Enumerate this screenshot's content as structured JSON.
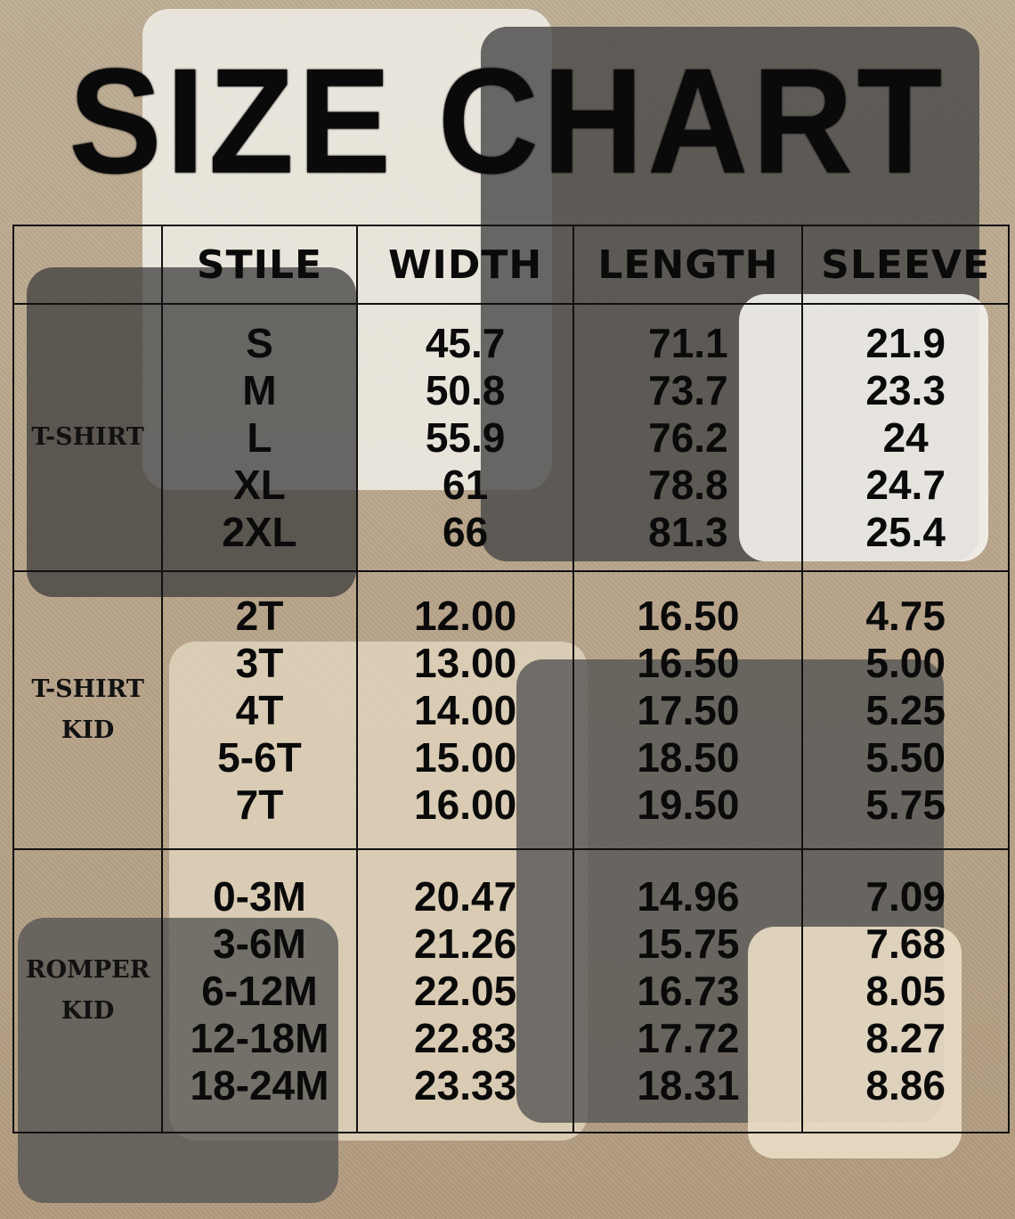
{
  "title": "SIZE CHART",
  "headers": [
    "",
    "STILE",
    "WIDTH",
    "LENGTH",
    "SLEEVE"
  ],
  "groups": [
    {
      "label": [
        "T-SHIRT"
      ],
      "sizes": [
        "S",
        "M",
        "L",
        "XL",
        "2XL"
      ],
      "width": [
        "45.7",
        "50.8",
        "55.9",
        "61",
        "66"
      ],
      "length": [
        "71.1",
        "73.7",
        "76.2",
        "78.8",
        "81.3"
      ],
      "sleeve": [
        "21.9",
        "23.3",
        "24",
        "24.7",
        "25.4"
      ]
    },
    {
      "label": [
        "T-SHIRT",
        "KID"
      ],
      "sizes": [
        "2T",
        "3T",
        "4T",
        "5-6T",
        "7T"
      ],
      "width": [
        "12.00",
        "13.00",
        "14.00",
        "15.00",
        "16.00"
      ],
      "length": [
        "16.50",
        "16.50",
        "17.50",
        "18.50",
        "19.50"
      ],
      "sleeve": [
        "4.75",
        "5.00",
        "5.25",
        "5.50",
        "5.75"
      ]
    },
    {
      "label": [
        "ROMPER",
        "KID"
      ],
      "sizes": [
        "0-3M",
        "3-6M",
        "6-12M",
        "12-18M",
        "18-24M"
      ],
      "width": [
        "20.47",
        "21.26",
        "22.05",
        "22.83",
        "23.33"
      ],
      "length": [
        "14.96",
        "15.75",
        "16.73",
        "17.72",
        "18.31"
      ],
      "sleeve": [
        "7.09",
        "7.68",
        "8.05",
        "8.27",
        "8.86"
      ]
    }
  ],
  "colors": {
    "background": "#b8a387",
    "text": "#0a0a0a"
  }
}
